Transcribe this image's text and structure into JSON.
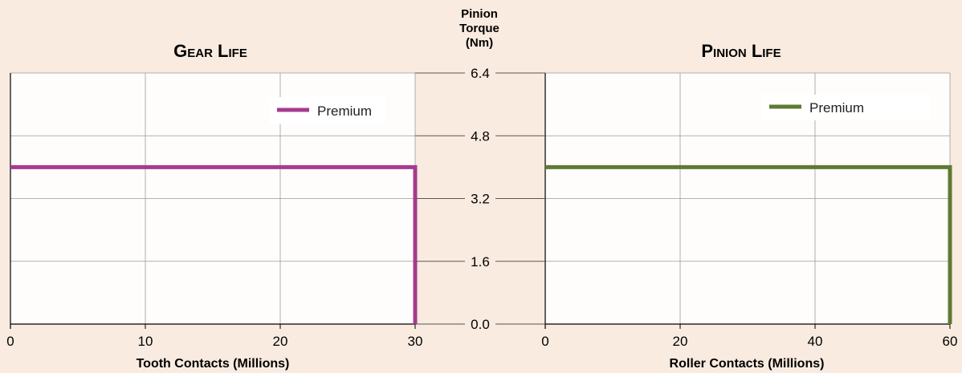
{
  "chart_data": [
    {
      "type": "line",
      "title": "Gear Life",
      "xlabel": "Tooth Contacts (Millions)",
      "ylabel": "",
      "xlim": [
        0,
        30
      ],
      "ylim": [
        0,
        6.4
      ],
      "x_ticks": [
        "0",
        "10",
        "20",
        "30"
      ],
      "grid": true,
      "legend_position": "top-right",
      "series": [
        {
          "name": "Premium",
          "color": "#a63b8f",
          "x": [
            0,
            30,
            30
          ],
          "y": [
            4.0,
            4.0,
            0.0
          ]
        }
      ]
    },
    {
      "type": "line",
      "title": "Pinion Life",
      "xlabel": "Roller Contacts (Millions)",
      "ylabel": "",
      "xlim": [
        0,
        60
      ],
      "ylim": [
        0,
        6.4
      ],
      "x_ticks": [
        "0",
        "20",
        "40",
        "60"
      ],
      "grid": true,
      "legend_position": "top-right",
      "series": [
        {
          "name": "Premium",
          "color": "#5e7a33",
          "x": [
            0,
            60,
            60
          ],
          "y": [
            4.0,
            4.0,
            0.0
          ]
        }
      ]
    }
  ],
  "shared_axis": {
    "title_lines": [
      "Pinion",
      "Torque",
      "(Nm)"
    ],
    "ticks": [
      "6.4",
      "4.8",
      "3.2",
      "1.6",
      "0.0"
    ],
    "values": [
      6.4,
      4.8,
      3.2,
      1.6,
      0.0
    ]
  },
  "colors": {
    "background": "#f9ebe0",
    "plot_fill": "#fffdfb",
    "grid": "#9a9a9a",
    "axis": "#000000"
  }
}
